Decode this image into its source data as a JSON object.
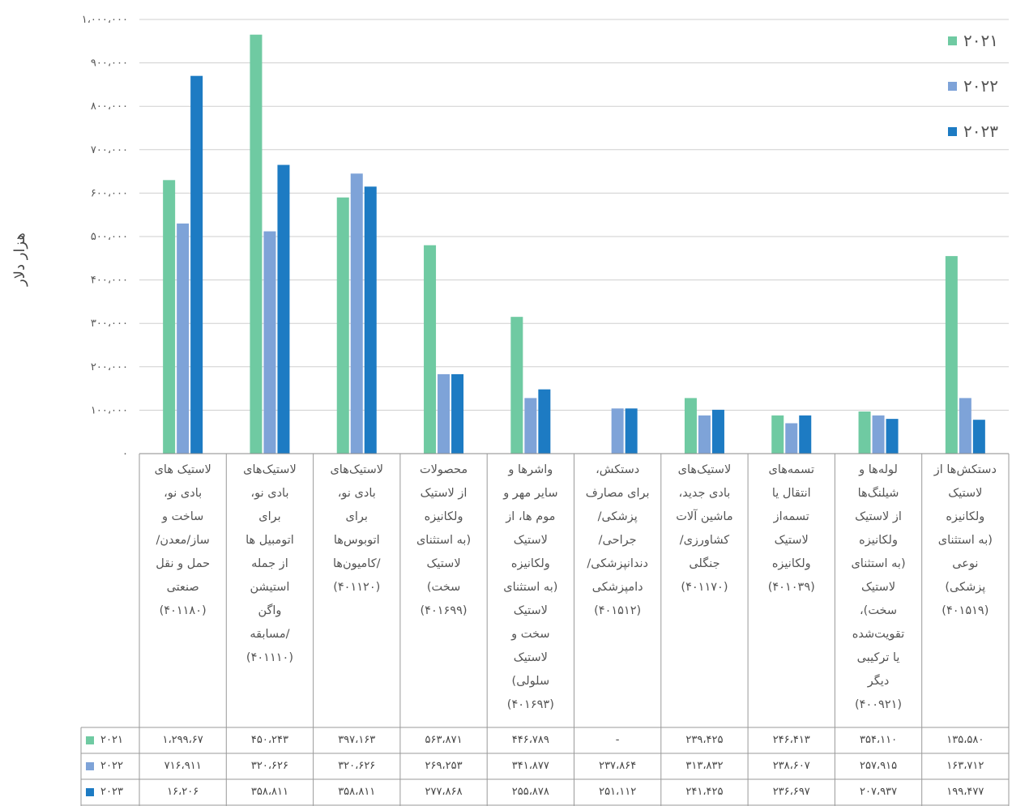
{
  "chart_data": {
    "type": "bar",
    "ylabel": "هزار دلار",
    "ylim": [
      0,
      1000000
    ],
    "yticks": [
      0,
      100000,
      200000,
      300000,
      400000,
      500000,
      600000,
      700000,
      800000,
      900000,
      1000000
    ],
    "ytick_labels": [
      "۰",
      "۱۰۰،۰۰۰",
      "۲۰۰،۰۰۰",
      "۳۰۰،۰۰۰",
      "۴۰۰،۰۰۰",
      "۵۰۰،۰۰۰",
      "۶۰۰،۰۰۰",
      "۷۰۰،۰۰۰",
      "۸۰۰،۰۰۰",
      "۹۰۰،۰۰۰",
      "۱،۰۰۰،۰۰۰"
    ],
    "grid": true,
    "legend_position": "top-right",
    "categories": [
      "لاستیک های\nبادی نو،\nساخت و\nساز/معدن/\nحمل و نقل\nصنعتی\n(۴۰۱۱۸۰)",
      "لاستیک‌های\nبادی نو،\nبرای\nاتومبیل ها\nاز جمله\nاستیشن\nواگن\n/مسابقه\n(۴۰۱۱۱۰)",
      "لاستیک‌های\nبادی نو،\nبرای\nاتوبوس‌ها\n/کامیون‌ها\n(۴۰۱۱۲۰)",
      "محصولات\nاز لاستیک\nولکانیزه\n(به استثنای\nلاستیک\nسخت)\n(۴۰۱۶۹۹)",
      "واشرها و\nسایر مهر و\nموم ها، از\nلاستیک\nولکانیزه\n(به استثنای\nلاستیک\nسخت و\nلاستیک\nسلولی)\n(۴۰۱۶۹۳)",
      "دستکش،\nبرای مصارف\nپزشکی/\nجراحی/\nدندانپزشکی/\nدامپزشکی\n(۴۰۱۵۱۲)",
      "لاستیک‌های\nبادی جدید،\nماشین آلات\nکشاورزی/\nجنگلی\n(۴۰۱۱۷۰)",
      "تسمه‌های\nانتقال یا\nتسمه‌از\nلاستیک\nولکانیزه\n(۴۰۱۰۳۹)",
      "لوله‌ها و\nشیلنگ‌ها\nاز لاستیک\nولکانیزه\n(به استثنای\nلاستیک\nسخت)،\nتقویت‌شده\nیا ترکیبی\nدیگر\n(۴۰۰۹۲۱)",
      "دستکش‌ها از\nلاستیک\nولکانیزه\n(به استثنای\nنوعی\nپزشکی)\n(۴۰۱۵۱۹)"
    ],
    "series": [
      {
        "name": "۲۰۲۱",
        "color": "#6fcaa2",
        "values": [
          630000,
          965000,
          590000,
          480000,
          315000,
          0,
          128000,
          88000,
          97000,
          455000
        ],
        "table": [
          "۱،۲۹۹،۶۷",
          "۴۵۰،۲۴۳",
          "۳۹۷،۱۶۳",
          "۵۶۳،۸۷۱",
          "۴۴۶،۷۸۹",
          "-",
          "۲۳۹،۴۲۵",
          "۲۴۶،۴۱۳",
          "۳۵۴،۱۱۰",
          "۱۳۵،۵۸۰"
        ]
      },
      {
        "name": "۲۰۲۲",
        "color": "#7ea3d8",
        "values": [
          530000,
          512000,
          645000,
          183000,
          128000,
          104000,
          88000,
          70000,
          88000,
          128000
        ],
        "table": [
          "۷۱۶،۹۱۱",
          "۳۲۰،۶۲۶",
          "۳۲۰،۶۲۶",
          "۲۶۹،۲۵۳",
          "۳۴۱،۸۷۷",
          "۲۳۷،۸۶۴",
          "۳۱۳،۸۳۲",
          "۲۳۸،۶۰۷",
          "۲۵۷،۹۱۵",
          "۱۶۳،۷۱۲"
        ]
      },
      {
        "name": "۲۰۲۳",
        "color": "#1d7bc3",
        "values": [
          870000,
          665000,
          615000,
          183000,
          148000,
          104000,
          101000,
          88000,
          80000,
          78000
        ],
        "table": [
          "۱۶،۲۰۶",
          "۳۵۸،۸۱۱",
          "۳۵۸،۸۱۱",
          "۲۷۷،۸۶۸",
          "۲۵۵،۸۷۸",
          "۲۵۱،۱۱۲",
          "۲۴۱،۴۲۵",
          "۲۳۶،۶۹۷",
          "۲۰۷،۹۳۷",
          "۱۹۹،۴۷۷"
        ]
      }
    ]
  }
}
